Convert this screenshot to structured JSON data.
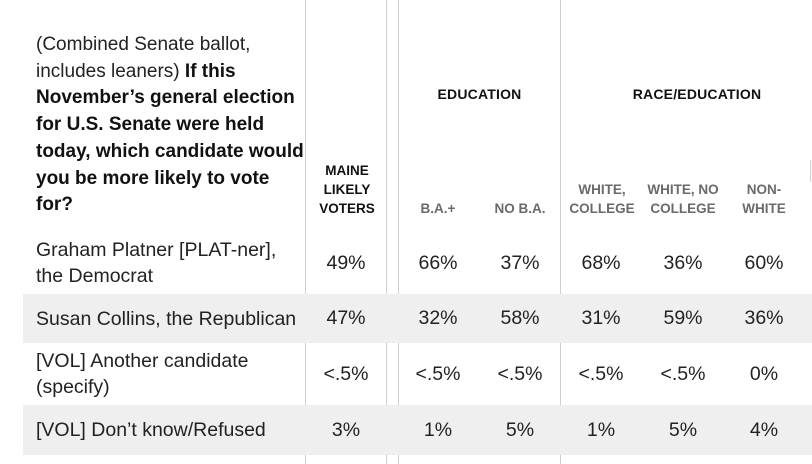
{
  "question": {
    "prefix": "(Combined Senate ballot, includes leaners)",
    "bold": "If this November’s general election for U.S. Senate were held today, which candidate would you be more likely to vote for?"
  },
  "groups": {
    "education": "EDUCATION",
    "race_education": "RACE/EDUCATION"
  },
  "columns": [
    "MAINE LIKELY VOTERS",
    "B.A.+",
    "NO B.A.",
    "WHITE, COLLEGE",
    "WHITE, NO COLLEGE",
    "NON-WHITE"
  ],
  "rows": [
    {
      "label": "Graham Platner [PLAT-ner], the Democrat",
      "values": [
        "49%",
        "66%",
        "37%",
        "68%",
        "36%",
        "60%"
      ]
    },
    {
      "label": "Susan Collins, the Republican",
      "values": [
        "47%",
        "32%",
        "58%",
        "31%",
        "59%",
        "36%"
      ]
    },
    {
      "label": "[VOL] Another candidate (specify)",
      "values": [
        "<.5%",
        "<.5%",
        "<.5%",
        "<.5%",
        "<.5%",
        "0%"
      ]
    },
    {
      "label": "[VOL] Don’t know/Refused",
      "values": [
        "3%",
        "1%",
        "5%",
        "1%",
        "5%",
        "4%"
      ]
    }
  ],
  "colors": {
    "shaded_row": "#efefef",
    "divider": "#cfcfcf",
    "subheader_grey": "#6a6a6a"
  }
}
